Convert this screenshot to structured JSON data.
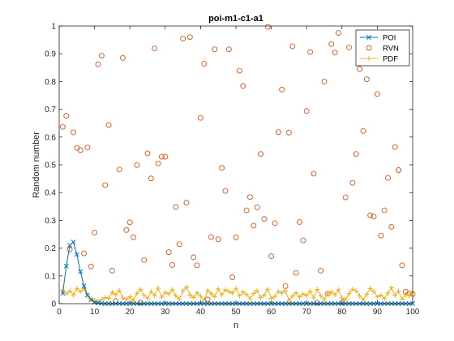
{
  "chart_data": {
    "type": "line",
    "title": "poi-m1-c1-a1",
    "xlabel": "n",
    "ylabel": "Random number",
    "xlim": [
      0,
      100
    ],
    "ylim": [
      0,
      1
    ],
    "xticks": [
      "0",
      "10",
      "20",
      "30",
      "40",
      "50",
      "60",
      "70",
      "80",
      "90",
      "100"
    ],
    "yticks": [
      "0",
      "0.1",
      "0.2",
      "0.3",
      "0.4",
      "0.5",
      "0.6",
      "0.7",
      "0.8",
      "0.9",
      "1"
    ],
    "legend_position": "top-right",
    "grid": false,
    "series": [
      {
        "name": "POI",
        "color": "#0072BD",
        "marker": "x",
        "line": true,
        "x": [
          1,
          2,
          3,
          4,
          5,
          6,
          7,
          8,
          9,
          10,
          11,
          12,
          13,
          14,
          15,
          16,
          17,
          18,
          19,
          20,
          21,
          22,
          23,
          24,
          25,
          26,
          27,
          28,
          29,
          30,
          31,
          32,
          33,
          34,
          35,
          36,
          37,
          38,
          39,
          40,
          41,
          42,
          43,
          44,
          45,
          46,
          47,
          48,
          49,
          50,
          51,
          52,
          53,
          54,
          55,
          56,
          57,
          58,
          59,
          60,
          61,
          62,
          63,
          64,
          65,
          66,
          67,
          68,
          69,
          70,
          71,
          72,
          73,
          74,
          75,
          76,
          77,
          78,
          79,
          80,
          81,
          82,
          83,
          84,
          85,
          86,
          87,
          88,
          89,
          90,
          91,
          92,
          93,
          94,
          95,
          96,
          97,
          98,
          99,
          100
        ],
        "y": [
          0.037,
          0.135,
          0.21,
          0.222,
          0.177,
          0.115,
          0.064,
          0.031,
          0.014,
          0.005,
          0.002,
          0.001,
          0,
          0,
          0,
          0,
          0,
          0,
          0,
          0,
          0,
          0,
          0,
          0,
          0,
          0,
          0,
          0,
          0,
          0,
          0,
          0,
          0,
          0,
          0,
          0,
          0,
          0,
          0,
          0,
          0,
          0,
          0,
          0,
          0,
          0,
          0,
          0,
          0,
          0,
          0,
          0,
          0,
          0,
          0,
          0,
          0,
          0,
          0,
          0,
          0,
          0,
          0,
          0,
          0,
          0,
          0,
          0,
          0,
          0,
          0,
          0,
          0,
          0,
          0,
          0,
          0,
          0,
          0,
          0,
          0,
          0,
          0,
          0,
          0,
          0,
          0,
          0,
          0,
          0,
          0,
          0,
          0,
          0,
          0,
          0,
          0,
          0,
          0,
          0
        ]
      },
      {
        "name": "RVN",
        "color": "#D95319",
        "marker": "o",
        "line": false,
        "x": [
          1,
          2,
          3,
          4,
          5,
          6,
          7,
          8,
          9,
          10,
          11,
          12,
          13,
          14,
          15,
          16,
          17,
          18,
          19,
          20,
          21,
          22,
          23,
          24,
          25,
          26,
          27,
          28,
          29,
          30,
          31,
          32,
          33,
          34,
          35,
          36,
          37,
          38,
          39,
          40,
          41,
          42,
          43,
          44,
          45,
          46,
          47,
          48,
          49,
          50,
          51,
          52,
          53,
          54,
          55,
          56,
          57,
          58,
          59,
          60,
          61,
          62,
          63,
          64,
          65,
          66,
          67,
          68,
          69,
          70,
          71,
          72,
          73,
          74,
          75,
          76,
          77,
          78,
          79,
          80,
          81,
          82,
          83,
          84,
          85,
          86,
          87,
          88,
          89,
          90,
          91,
          92,
          93,
          94,
          95,
          96,
          97,
          98,
          99,
          100
        ],
        "y": [
          0.637,
          0.677,
          0.195,
          0.617,
          0.561,
          0.553,
          0.181,
          0.562,
          0.134,
          0.256,
          0.862,
          0.893,
          0.427,
          0.643,
          0.119,
          0.01,
          0.483,
          0.885,
          0.265,
          0.293,
          0.239,
          0.499,
          0.004,
          0.157,
          0.541,
          0.451,
          0.919,
          0.505,
          0.529,
          0.529,
          0.185,
          0.139,
          0.348,
          0.214,
          0.955,
          0.364,
          0.96,
          0.167,
          0.138,
          0.669,
          0.864,
          0.015,
          0.24,
          0.916,
          0.232,
          0.489,
          0.406,
          0.916,
          0.095,
          0.239,
          0.839,
          0.784,
          0.336,
          0.384,
          0.281,
          0.347,
          0.539,
          0.305,
          0.997,
          0.171,
          0.29,
          0.618,
          0.771,
          0.063,
          0.616,
          0.927,
          0.111,
          0.294,
          0.228,
          0.694,
          0.906,
          0.468,
          0.003,
          0.119,
          0.8,
          0.036,
          0.935,
          0.904,
          0.975,
          0.005,
          0.383,
          0.923,
          0.435,
          0.539,
          0.845,
          0.622,
          0.808,
          0.318,
          0.314,
          0.755,
          0.245,
          0.336,
          0.453,
          0.277,
          0.564,
          0.481,
          0.138,
          0.043,
          0.036,
          0.035
        ]
      },
      {
        "name": "PDF",
        "color": "#EDB120",
        "marker": "+",
        "line": true,
        "x": [
          1,
          2,
          3,
          4,
          5,
          6,
          7,
          8,
          9,
          10,
          11,
          12,
          13,
          14,
          15,
          16,
          17,
          18,
          19,
          20,
          21,
          22,
          23,
          24,
          25,
          26,
          27,
          28,
          29,
          30,
          31,
          32,
          33,
          34,
          35,
          36,
          37,
          38,
          39,
          40,
          41,
          42,
          43,
          44,
          45,
          46,
          47,
          48,
          49,
          50,
          51,
          52,
          53,
          54,
          55,
          56,
          57,
          58,
          59,
          60,
          61,
          62,
          63,
          64,
          65,
          66,
          67,
          68,
          69,
          70,
          71,
          72,
          73,
          74,
          75,
          76,
          77,
          78,
          79,
          80,
          81,
          82,
          83,
          84,
          85,
          86,
          87,
          88,
          89,
          90,
          91,
          92,
          93,
          94,
          95,
          96,
          97,
          98,
          99,
          100
        ],
        "y": [
          0.049,
          0.035,
          0.046,
          0.031,
          0.055,
          0.043,
          0.054,
          0.028,
          0.016,
          0.011,
          0.008,
          0.014,
          0.022,
          0.019,
          0.041,
          0.032,
          0.048,
          0.021,
          0.015,
          0.025,
          0.012,
          0.037,
          0.052,
          0.03,
          0.018,
          0.044,
          0.029,
          0.056,
          0.023,
          0.041,
          0.035,
          0.05,
          0.028,
          0.017,
          0.046,
          0.06,
          0.031,
          0.022,
          0.039,
          0.027,
          0.013,
          0.048,
          0.036,
          0.025,
          0.053,
          0.032,
          0.05,
          0.044,
          0.038,
          0.055,
          0.028,
          0.042,
          0.033,
          0.018,
          0.037,
          0.047,
          0.022,
          0.031,
          0.052,
          0.019,
          0.026,
          0.044,
          0.038,
          0.047,
          0.012,
          0.027,
          0.039,
          0.024,
          0.035,
          0.029,
          0.045,
          0.021,
          0.051,
          0.028,
          0.014,
          0.037,
          0.043,
          0.032,
          0.05,
          0.02,
          0.015,
          0.036,
          0.052,
          0.046,
          0.028,
          0.013,
          0.034,
          0.055,
          0.043,
          0.024,
          0.031,
          0.018,
          0.038,
          0.057,
          0.03,
          0.045,
          0.016,
          0.033,
          0.029,
          0.04
        ]
      }
    ]
  }
}
